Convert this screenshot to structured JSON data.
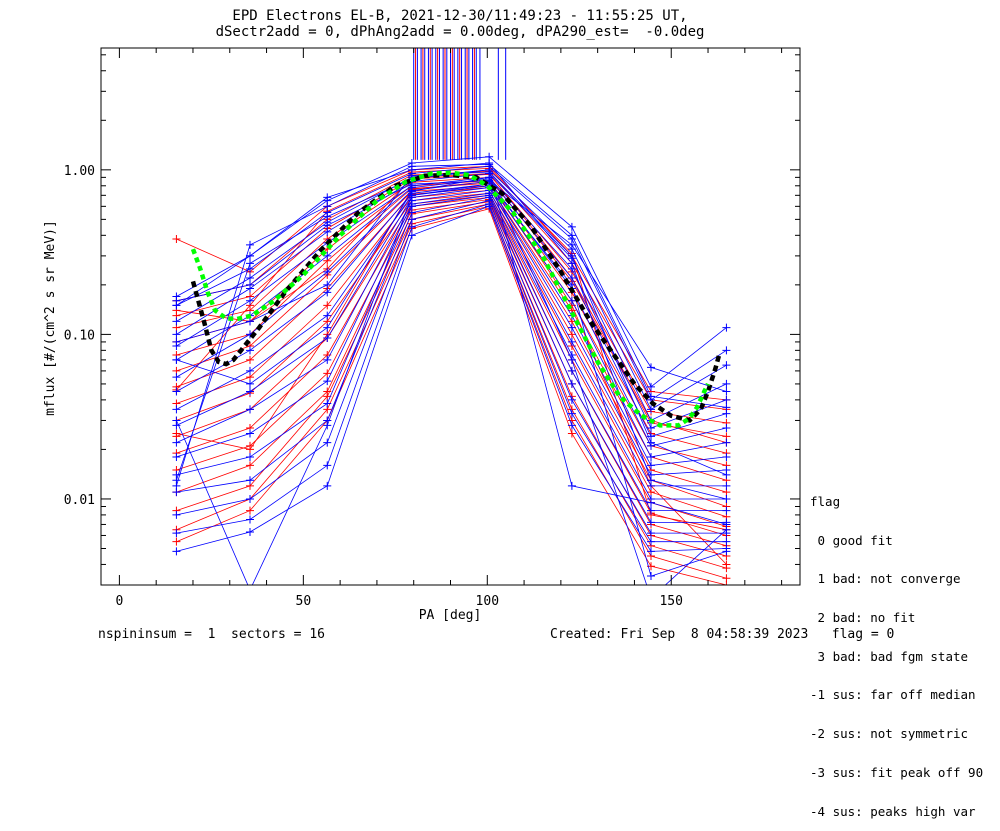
{
  "header": {
    "title_line1": "EPD Electrons EL-B, 2021-12-30/11:49:23 - 11:55:25 UT,",
    "title_line2": "dSectr2add = 0, dPhAng2add = 0.00deg, dPA290_est=  -0.0deg"
  },
  "footer": {
    "left": "nspininsum =  1  sectors = 16",
    "right": "Created: Fri Sep  8 04:58:39 2023   flag = 0"
  },
  "legend": {
    "title": "flag",
    "items": [
      " 0 good fit",
      " 1 bad: not converge",
      " 2 bad: no fit",
      " 3 bad: bad fgm state",
      "-1 sus: far off median",
      "-2 sus: not symmetric",
      "-3 sus: fit peak off 90",
      "-4 sus: peaks high var"
    ]
  },
  "colors": {
    "series_blue": "#0000ff",
    "series_red": "#ff0000",
    "fit_black": "#000000",
    "fit_green": "#00ff00"
  },
  "chart_data": {
    "type": "line",
    "xlabel": "PA [deg]",
    "ylabel": "mflux [#/(cm^2 s sr MeV)]",
    "xlim": [
      -5,
      185
    ],
    "ylim": [
      0.003,
      5.5
    ],
    "yscale": "log",
    "xticks": [
      0,
      50,
      100,
      150
    ],
    "xtick_labels": [
      "0",
      "50",
      "100",
      "150"
    ],
    "yticks": [
      0.01,
      0.1,
      1.0
    ],
    "ytick_labels": [
      "0.01",
      "0.10",
      "1.00"
    ],
    "pa_bins": [
      15.5,
      35.5,
      56.5,
      79.5,
      100.5,
      123,
      144.5,
      165
    ],
    "series": [
      {
        "color": "blue",
        "values": [
          0.17,
          0.3,
          0.65,
          1.1,
          1.2,
          0.45,
          0.048,
          0.11
        ]
      },
      {
        "color": "blue",
        "values": [
          0.15,
          0.25,
          0.55,
          0.95,
          1.05,
          0.38,
          0.04,
          0.08
        ]
      },
      {
        "color": "blue",
        "values": [
          0.12,
          0.22,
          0.48,
          0.9,
          1.0,
          0.33,
          0.035,
          0.065
        ]
      },
      {
        "color": "blue",
        "values": [
          0.1,
          0.19,
          0.42,
          0.85,
          0.95,
          0.29,
          0.03,
          0.05
        ]
      },
      {
        "color": "blue",
        "values": [
          0.085,
          0.16,
          0.36,
          0.8,
          0.9,
          0.25,
          0.027,
          0.04
        ]
      },
      {
        "color": "blue",
        "values": [
          0.07,
          0.13,
          0.3,
          0.78,
          0.88,
          0.22,
          0.024,
          0.033
        ]
      },
      {
        "color": "blue",
        "values": [
          0.055,
          0.1,
          0.24,
          0.75,
          0.85,
          0.19,
          0.021,
          0.027
        ]
      },
      {
        "color": "blue",
        "values": [
          0.045,
          0.08,
          0.18,
          0.72,
          0.82,
          0.16,
          0.018,
          0.022
        ]
      },
      {
        "color": "blue",
        "values": [
          0.035,
          0.06,
          0.13,
          0.7,
          0.8,
          0.13,
          0.016,
          0.018
        ]
      },
      {
        "color": "blue",
        "values": [
          0.028,
          0.045,
          0.095,
          0.68,
          0.78,
          0.11,
          0.014,
          0.015
        ]
      },
      {
        "color": "blue",
        "values": [
          0.022,
          0.035,
          0.07,
          0.65,
          0.75,
          0.09,
          0.012,
          0.012
        ]
      },
      {
        "color": "blue",
        "values": [
          0.018,
          0.025,
          0.052,
          0.62,
          0.72,
          0.075,
          0.01,
          0.01
        ]
      },
      {
        "color": "blue",
        "values": [
          0.014,
          0.018,
          0.038,
          0.6,
          0.7,
          0.06,
          0.0085,
          0.0085
        ]
      },
      {
        "color": "blue",
        "values": [
          0.011,
          0.013,
          0.03,
          0.55,
          0.68,
          0.05,
          0.0072,
          0.0072
        ]
      },
      {
        "color": "blue",
        "values": [
          0.008,
          0.01,
          0.022,
          0.5,
          0.65,
          0.04,
          0.0062,
          0.0062
        ]
      },
      {
        "color": "blue",
        "values": [
          0.0062,
          0.0075,
          0.016,
          0.45,
          0.62,
          0.033,
          0.0055,
          0.0055
        ]
      },
      {
        "color": "blue",
        "values": [
          0.0048,
          0.0063,
          0.012,
          0.4,
          0.6,
          0.028,
          0.0048,
          0.005
        ]
      },
      {
        "color": "blue",
        "values": [
          0.013,
          0.27,
          0.52,
          0.88,
          1.0,
          0.012,
          0.0095,
          0.007
        ]
      },
      {
        "color": "blue",
        "values": [
          0.03,
          0.0028,
          0.028,
          0.7,
          0.82,
          0.2,
          0.0034,
          0.0048
        ]
      },
      {
        "color": "blue",
        "values": [
          0.012,
          0.35,
          0.6,
          1.05,
          1.08,
          0.4,
          0.042,
          0.036
        ]
      },
      {
        "color": "blue",
        "values": [
          0.09,
          0.12,
          0.2,
          0.92,
          0.97,
          0.3,
          0.022,
          0.014
        ]
      },
      {
        "color": "blue",
        "values": [
          0.16,
          0.2,
          0.46,
          0.82,
          0.86,
          0.35,
          0.063,
          0.045
        ]
      },
      {
        "color": "blue",
        "values": [
          0.07,
          0.05,
          0.11,
          0.74,
          0.9,
          0.07,
          0.0025,
          0.0065
        ]
      },
      {
        "color": "blue",
        "values": [
          0.15,
          0.3,
          0.68,
          1.0,
          1.1,
          0.27,
          0.013,
          0.01
        ]
      },
      {
        "color": "red",
        "values": [
          0.38,
          0.24,
          0.6,
          1.0,
          1.05,
          0.3,
          0.045,
          0.04
        ]
      },
      {
        "color": "red",
        "values": [
          0.16,
          0.2,
          0.5,
          0.93,
          0.98,
          0.27,
          0.04,
          0.035
        ]
      },
      {
        "color": "red",
        "values": [
          0.13,
          0.17,
          0.44,
          0.88,
          0.94,
          0.24,
          0.034,
          0.029
        ]
      },
      {
        "color": "red",
        "values": [
          0.11,
          0.14,
          0.38,
          0.84,
          0.9,
          0.21,
          0.029,
          0.024
        ]
      },
      {
        "color": "red",
        "values": [
          0.09,
          0.12,
          0.33,
          0.8,
          0.86,
          0.18,
          0.025,
          0.019
        ]
      },
      {
        "color": "red",
        "values": [
          0.075,
          0.1,
          0.28,
          0.77,
          0.83,
          0.16,
          0.021,
          0.016
        ]
      },
      {
        "color": "red",
        "values": [
          0.06,
          0.085,
          0.23,
          0.74,
          0.8,
          0.14,
          0.018,
          0.013
        ]
      },
      {
        "color": "red",
        "values": [
          0.048,
          0.07,
          0.19,
          0.71,
          0.78,
          0.12,
          0.015,
          0.011
        ]
      },
      {
        "color": "red",
        "values": [
          0.038,
          0.055,
          0.15,
          0.68,
          0.75,
          0.1,
          0.013,
          0.009
        ]
      },
      {
        "color": "red",
        "values": [
          0.03,
          0.044,
          0.12,
          0.65,
          0.72,
          0.085,
          0.011,
          0.0078
        ]
      },
      {
        "color": "red",
        "values": [
          0.024,
          0.035,
          0.095,
          0.62,
          0.7,
          0.07,
          0.0095,
          0.0068
        ]
      },
      {
        "color": "red",
        "values": [
          0.019,
          0.027,
          0.075,
          0.6,
          0.68,
          0.06,
          0.0082,
          0.006
        ]
      },
      {
        "color": "red",
        "values": [
          0.015,
          0.021,
          0.058,
          0.57,
          0.66,
          0.05,
          0.007,
          0.0052
        ]
      },
      {
        "color": "red",
        "values": [
          0.011,
          0.016,
          0.045,
          0.54,
          0.64,
          0.042,
          0.006,
          0.0045
        ]
      },
      {
        "color": "red",
        "values": [
          0.0085,
          0.012,
          0.042,
          0.5,
          0.62,
          0.035,
          0.0052,
          0.0038
        ]
      },
      {
        "color": "red",
        "values": [
          0.0065,
          0.01,
          0.035,
          0.47,
          0.6,
          0.03,
          0.0045,
          0.0033
        ]
      },
      {
        "color": "red",
        "values": [
          0.0055,
          0.0085,
          0.03,
          0.44,
          0.58,
          0.025,
          0.0039,
          0.003
        ]
      },
      {
        "color": "red",
        "values": [
          0.14,
          0.12,
          0.25,
          0.9,
          0.95,
          0.22,
          0.03,
          0.022
        ]
      },
      {
        "color": "red",
        "values": [
          0.046,
          0.15,
          0.56,
          0.97,
          1.02,
          0.31,
          0.008,
          0.0065
        ]
      },
      {
        "color": "red",
        "values": [
          0.025,
          0.02,
          0.1,
          0.76,
          0.85,
          0.15,
          0.012,
          0.004
        ]
      }
    ],
    "spikes": {
      "blue_x": [
        80,
        81,
        82,
        83,
        84,
        85,
        86,
        87,
        88,
        89,
        90,
        91,
        92,
        93,
        94,
        95,
        96,
        97,
        98,
        103,
        105
      ],
      "red_x": [
        80.5,
        82.5,
        84.5,
        86.5,
        88.5,
        90.5,
        92.5,
        94.5,
        96.5
      ],
      "base": 1.15
    },
    "fit_black": {
      "x": [
        20,
        23,
        25,
        27,
        29,
        31,
        34,
        38,
        45,
        55,
        65,
        75,
        83,
        90,
        97,
        104,
        112,
        120,
        128,
        135,
        140,
        145,
        150,
        155,
        158,
        160,
        162,
        163
      ],
      "y": [
        0.21,
        0.12,
        0.08,
        0.068,
        0.066,
        0.07,
        0.085,
        0.11,
        0.18,
        0.33,
        0.55,
        0.8,
        0.92,
        0.93,
        0.9,
        0.72,
        0.45,
        0.24,
        0.12,
        0.072,
        0.05,
        0.038,
        0.032,
        0.03,
        0.035,
        0.045,
        0.062,
        0.075
      ]
    },
    "fit_green": {
      "x": [
        20,
        22,
        24,
        26,
        29,
        32,
        36,
        42,
        50,
        60,
        70,
        78,
        85,
        90,
        95,
        100,
        107,
        115,
        122,
        130,
        136,
        142,
        147,
        152,
        155,
        157,
        159,
        160
      ],
      "y": [
        0.33,
        0.25,
        0.18,
        0.14,
        0.125,
        0.124,
        0.13,
        0.16,
        0.23,
        0.4,
        0.65,
        0.85,
        0.95,
        0.96,
        0.93,
        0.8,
        0.55,
        0.3,
        0.15,
        0.068,
        0.042,
        0.032,
        0.028,
        0.028,
        0.031,
        0.036,
        0.045,
        0.05
      ]
    }
  }
}
